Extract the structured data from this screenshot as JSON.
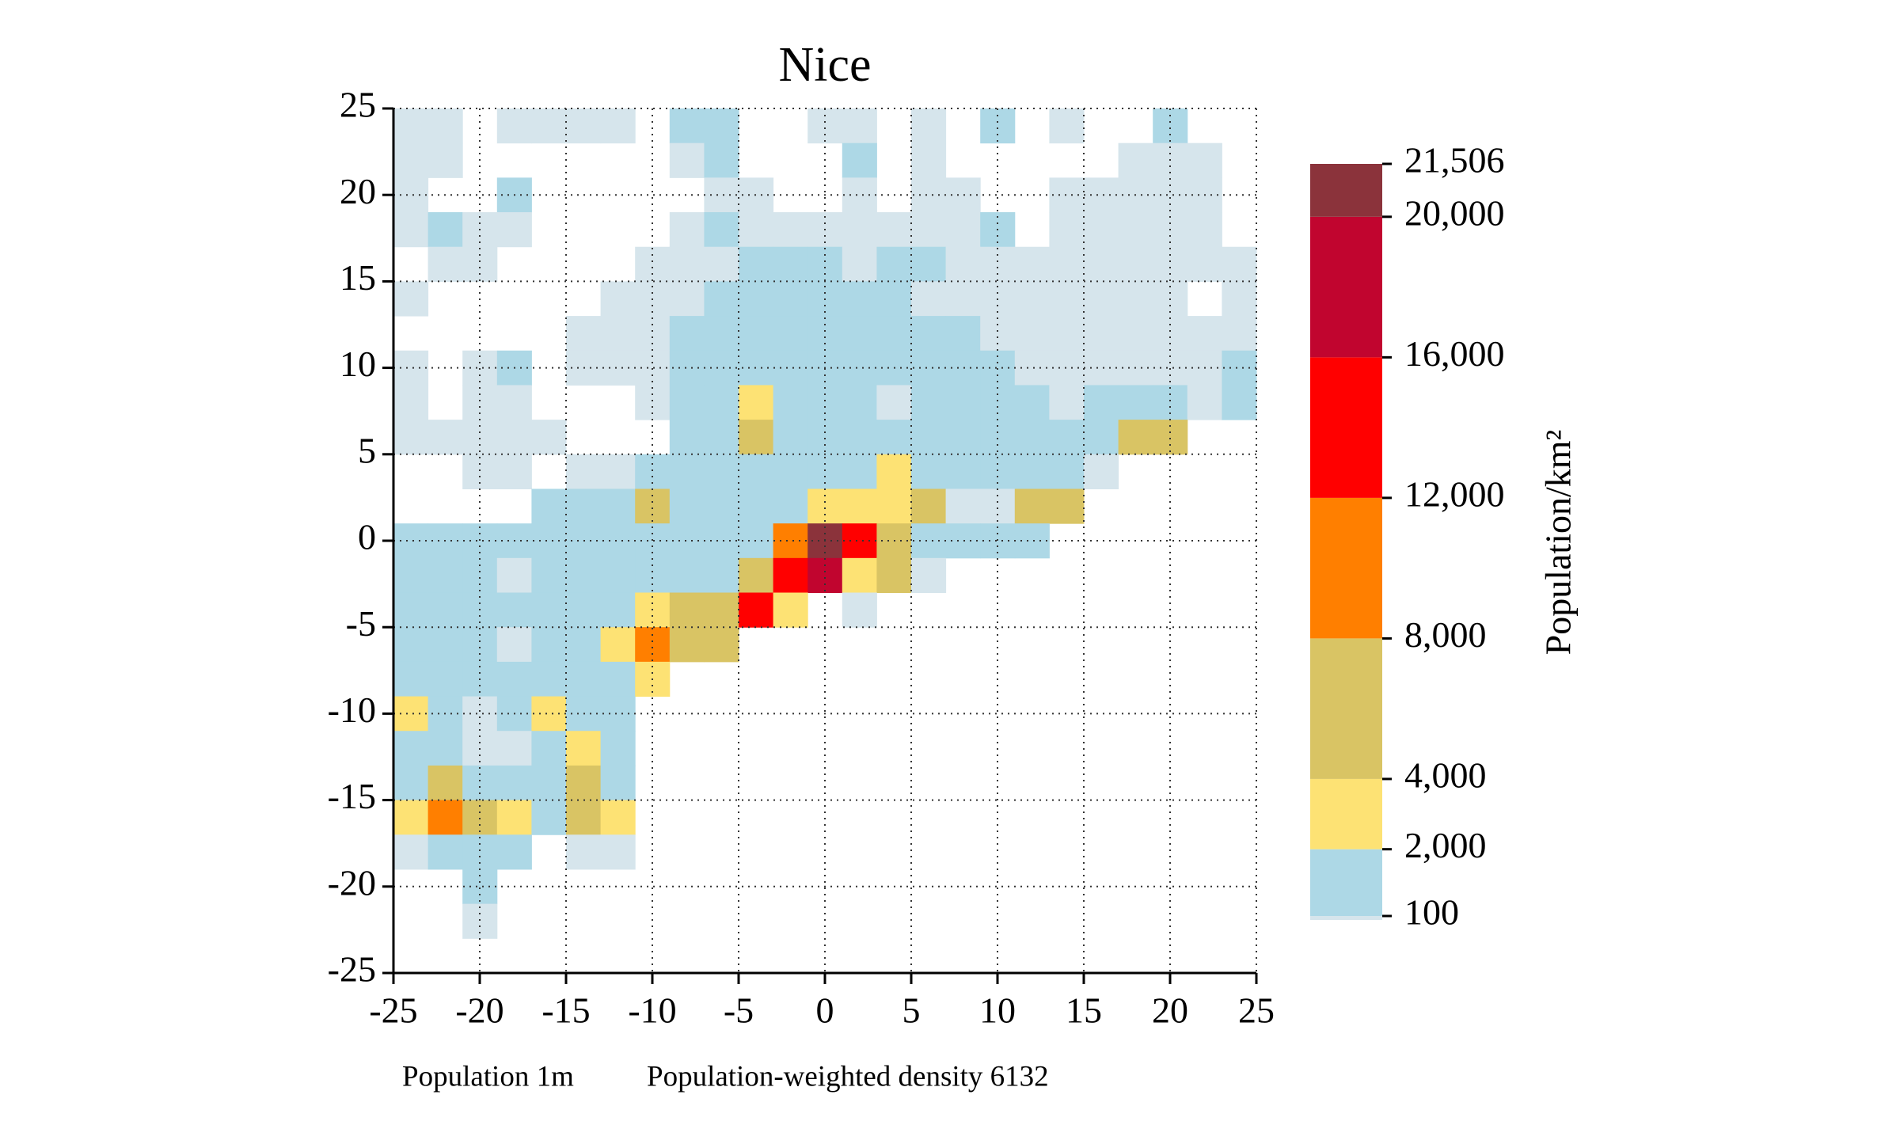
{
  "chart_data": {
    "type": "heatmap",
    "title": "Nice",
    "xlim": [
      -25,
      25
    ],
    "ylim": [
      -25,
      25
    ],
    "xticks": [
      -25,
      -20,
      -15,
      -10,
      -5,
      0,
      5,
      10,
      15,
      20,
      25
    ],
    "yticks": [
      -25,
      -20,
      -15,
      -10,
      -5,
      0,
      5,
      10,
      15,
      20,
      25
    ],
    "grid": true,
    "colorbar_label": "Population/km²",
    "color_levels": [
      100,
      2000,
      4000,
      8000,
      12000,
      16000,
      20000,
      21506
    ],
    "colors": [
      "#d6e5ec",
      "#add8e6",
      "#fde274",
      "#d9c464",
      "#ff7f00",
      "#ff0000",
      "#c1052f",
      "#8b333b"
    ],
    "cticks": [
      {
        "value": 21506,
        "label": "21,506"
      },
      {
        "value": 20000,
        "label": "20,000"
      },
      {
        "value": 16000,
        "label": "16,000"
      },
      {
        "value": 12000,
        "label": "12,000"
      },
      {
        "value": 8000,
        "label": "8,000"
      },
      {
        "value": 4000,
        "label": "4,000"
      },
      {
        "value": 2000,
        "label": "2,000"
      },
      100
    ],
    "footnotes": [
      "Population 1m",
      "Population-weighted density 6132"
    ],
    "z": [
      [
        50,
        50,
        null,
        50,
        50,
        50,
        50,
        null,
        1000,
        1000,
        null,
        null,
        50,
        50,
        null,
        50,
        null,
        1000,
        null,
        50,
        null,
        null,
        1000,
        null,
        null
      ],
      [
        50,
        50,
        null,
        null,
        null,
        null,
        null,
        null,
        50,
        1000,
        null,
        null,
        null,
        1000,
        null,
        50,
        null,
        null,
        null,
        null,
        null,
        50,
        50,
        50,
        null
      ],
      [
        50,
        null,
        null,
        1000,
        null,
        null,
        null,
        null,
        null,
        50,
        50,
        null,
        null,
        50,
        null,
        50,
        50,
        null,
        null,
        50,
        50,
        50,
        50,
        50,
        null
      ],
      [
        50,
        1000,
        50,
        50,
        null,
        null,
        null,
        null,
        50,
        1000,
        50,
        50,
        50,
        50,
        50,
        50,
        50,
        1000,
        null,
        50,
        50,
        50,
        50,
        50,
        null
      ],
      [
        null,
        50,
        50,
        null,
        null,
        null,
        null,
        50,
        50,
        50,
        1000,
        1000,
        1000,
        50,
        1000,
        1000,
        50,
        50,
        50,
        50,
        50,
        50,
        50,
        50,
        50
      ],
      [
        50,
        null,
        null,
        null,
        null,
        null,
        50,
        50,
        50,
        1000,
        1000,
        1000,
        1000,
        1000,
        1000,
        50,
        50,
        50,
        50,
        50,
        50,
        50,
        50,
        null,
        50
      ],
      [
        null,
        null,
        null,
        null,
        null,
        50,
        50,
        50,
        1000,
        1000,
        1000,
        1000,
        1000,
        1000,
        1000,
        1000,
        1000,
        50,
        50,
        50,
        50,
        50,
        50,
        50,
        50
      ],
      [
        50,
        null,
        50,
        1000,
        null,
        50,
        50,
        50,
        1000,
        1000,
        1000,
        1000,
        1000,
        1000,
        1000,
        1000,
        1000,
        1000,
        50,
        50,
        50,
        50,
        50,
        50,
        1000
      ],
      [
        50,
        null,
        50,
        50,
        null,
        null,
        null,
        50,
        1000,
        1000,
        3000,
        1000,
        1000,
        1000,
        50,
        1000,
        1000,
        1000,
        1000,
        50,
        1000,
        1000,
        1000,
        50,
        1000
      ],
      [
        50,
        50,
        50,
        50,
        50,
        null,
        null,
        null,
        1000,
        1000,
        6000,
        1000,
        1000,
        1000,
        1000,
        1000,
        1000,
        1000,
        1000,
        1000,
        1000,
        6000,
        6000,
        null,
        null
      ],
      [
        null,
        null,
        50,
        50,
        null,
        50,
        50,
        1000,
        1000,
        1000,
        1000,
        1000,
        1000,
        1000,
        3000,
        1000,
        1000,
        1000,
        1000,
        1000,
        50,
        null,
        null,
        null,
        null
      ],
      [
        null,
        null,
        null,
        null,
        1000,
        1000,
        1000,
        6000,
        1000,
        1000,
        1000,
        1000,
        3000,
        3000,
        3000,
        6000,
        50,
        50,
        6000,
        6000,
        null,
        null,
        null,
        null,
        null
      ],
      [
        1000,
        1000,
        1000,
        1000,
        1000,
        1000,
        1000,
        1000,
        1000,
        1000,
        1000,
        10000,
        21000,
        14000,
        6000,
        1000,
        1000,
        1000,
        1000,
        null,
        null,
        null,
        null,
        null,
        null
      ],
      [
        1000,
        1000,
        1000,
        50,
        1000,
        1000,
        1000,
        1000,
        1000,
        1000,
        6000,
        14000,
        18000,
        3000,
        6000,
        50,
        null,
        null,
        null,
        null,
        null,
        null,
        null,
        null,
        null
      ],
      [
        1000,
        1000,
        1000,
        1000,
        1000,
        1000,
        1000,
        3000,
        6000,
        6000,
        14000,
        3000,
        null,
        50,
        null,
        null,
        null,
        null,
        null,
        null,
        null,
        null,
        null,
        null,
        null
      ],
      [
        1000,
        1000,
        1000,
        50,
        1000,
        1000,
        3000,
        10000,
        6000,
        6000,
        null,
        null,
        null,
        null,
        null,
        null,
        null,
        null,
        null,
        null,
        null,
        null,
        null,
        null,
        null
      ],
      [
        1000,
        1000,
        1000,
        1000,
        1000,
        1000,
        1000,
        3000,
        null,
        null,
        null,
        null,
        null,
        null,
        null,
        null,
        null,
        null,
        null,
        null,
        null,
        null,
        null,
        null,
        null
      ],
      [
        3000,
        1000,
        50,
        1000,
        3000,
        1000,
        1000,
        null,
        null,
        null,
        null,
        null,
        null,
        null,
        null,
        null,
        null,
        null,
        null,
        null,
        null,
        null,
        null,
        null,
        null
      ],
      [
        1000,
        1000,
        50,
        50,
        1000,
        3000,
        1000,
        null,
        null,
        null,
        null,
        null,
        null,
        null,
        null,
        null,
        null,
        null,
        null,
        null,
        null,
        null,
        null,
        null,
        null
      ],
      [
        1000,
        6000,
        1000,
        1000,
        1000,
        6000,
        1000,
        null,
        null,
        null,
        null,
        null,
        null,
        null,
        null,
        null,
        null,
        null,
        null,
        null,
        null,
        null,
        null,
        null,
        null
      ],
      [
        3000,
        10000,
        6000,
        3000,
        1000,
        6000,
        3000,
        null,
        null,
        null,
        null,
        null,
        null,
        null,
        null,
        null,
        null,
        null,
        null,
        null,
        null,
        null,
        null,
        null,
        null
      ],
      [
        50,
        1000,
        1000,
        1000,
        null,
        50,
        50,
        null,
        null,
        null,
        null,
        null,
        null,
        null,
        null,
        null,
        null,
        null,
        null,
        null,
        null,
        null,
        null,
        null,
        null
      ],
      [
        null,
        null,
        1000,
        null,
        null,
        null,
        null,
        null,
        null,
        null,
        null,
        null,
        null,
        null,
        null,
        null,
        null,
        null,
        null,
        null,
        null,
        null,
        null,
        null,
        null
      ],
      [
        null,
        null,
        50,
        null,
        null,
        null,
        null,
        null,
        null,
        null,
        null,
        null,
        null,
        null,
        null,
        null,
        null,
        null,
        null,
        null,
        null,
        null,
        null,
        null,
        null
      ],
      [
        null,
        null,
        null,
        null,
        null,
        null,
        null,
        null,
        null,
        null,
        null,
        null,
        null,
        null,
        null,
        null,
        null,
        null,
        null,
        null,
        null,
        null,
        null,
        null,
        null
      ]
    ]
  }
}
